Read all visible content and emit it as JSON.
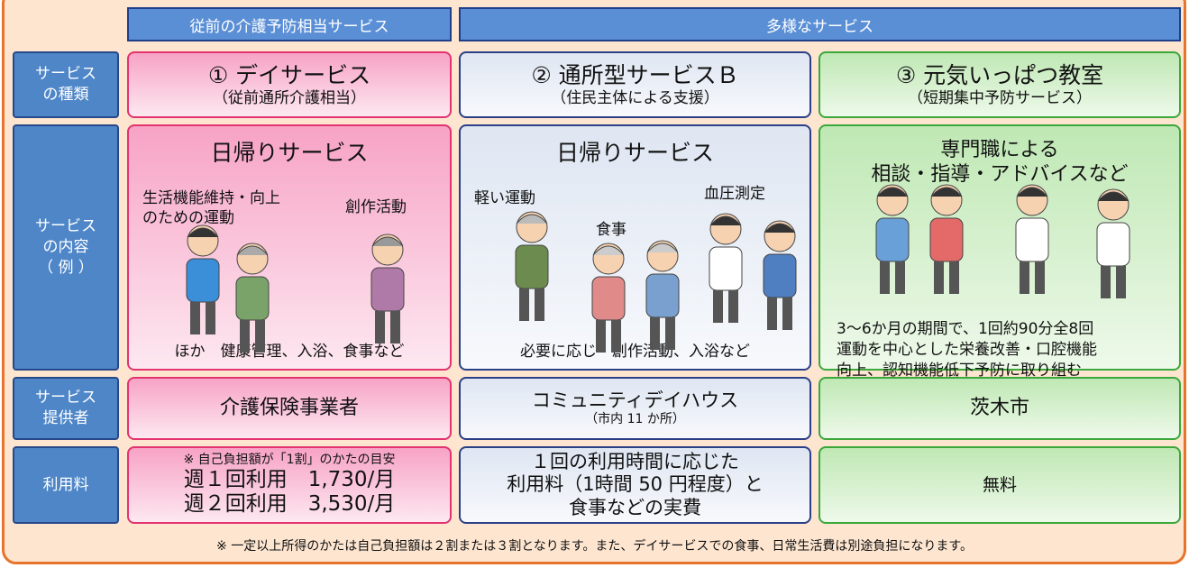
{
  "header_columns": [
    "従前の介護予防相当サービス",
    "多様なサービス"
  ],
  "row_labels": [
    [
      "サービス",
      "の種類"
    ],
    [
      "サービス",
      "の内容",
      "（ 例 ）"
    ],
    [
      "サービス",
      "提供者"
    ],
    [
      "利用料"
    ]
  ],
  "rows": [
    [
      {
        "lines": [
          "① デイサービス",
          "（従前通所介護相当）"
        ]
      },
      {
        "lines": [
          "② 通所型サービスＢ",
          "（住民主体による支援）"
        ]
      },
      {
        "lines": [
          "③ 元気いっぱつ教室",
          "（短期集中予防サービス）"
        ]
      }
    ],
    [
      {
        "title": [
          "日帰りサービス"
        ],
        "captions": [
          [
            "生活機能維持・向上",
            "のための運動"
          ],
          [
            "創作活動"
          ]
        ],
        "note": [
          "ほか　健康管理、入浴、食事など"
        ]
      },
      {
        "title": [
          "日帰りサービス"
        ],
        "captions": [
          [
            "軽い運動"
          ],
          [
            "食事"
          ],
          [
            "血圧測定"
          ]
        ],
        "note": [
          "必要に応じ　創作活動、入浴など"
        ]
      },
      {
        "title": [
          "専門職による",
          "相談・指導・アドバイスなど"
        ],
        "captions": [],
        "note": [
          "3～6か月の期間で、1回約90分全8回",
          "運動を中心とした栄養改善・口腔機能",
          "向上、認知機能低下予防に取り組む"
        ]
      }
    ],
    [
      {
        "lines": [
          "介護保険事業者"
        ]
      },
      {
        "lines": [
          "コミュニティデイハウス",
          "（市内 11 か所）"
        ]
      },
      {
        "lines": [
          "茨木市"
        ]
      }
    ],
    [
      {
        "lines": [
          "※ 自己負担額が「1割」のかたの目安",
          "週１回利用　1,730/月",
          "週２回利用　3,530/月"
        ]
      },
      {
        "lines": [
          "１回の利用時間に応じた",
          "利用料（1時間 50 円程度）と",
          "食事などの実費"
        ]
      },
      {
        "lines": [
          "無料"
        ]
      }
    ]
  ],
  "footnote": "※ 一定以上所得のかたは自己負担額は２割または３割となります。また、デイサービスでの食事、日常生活費は別途負担になります。"
}
